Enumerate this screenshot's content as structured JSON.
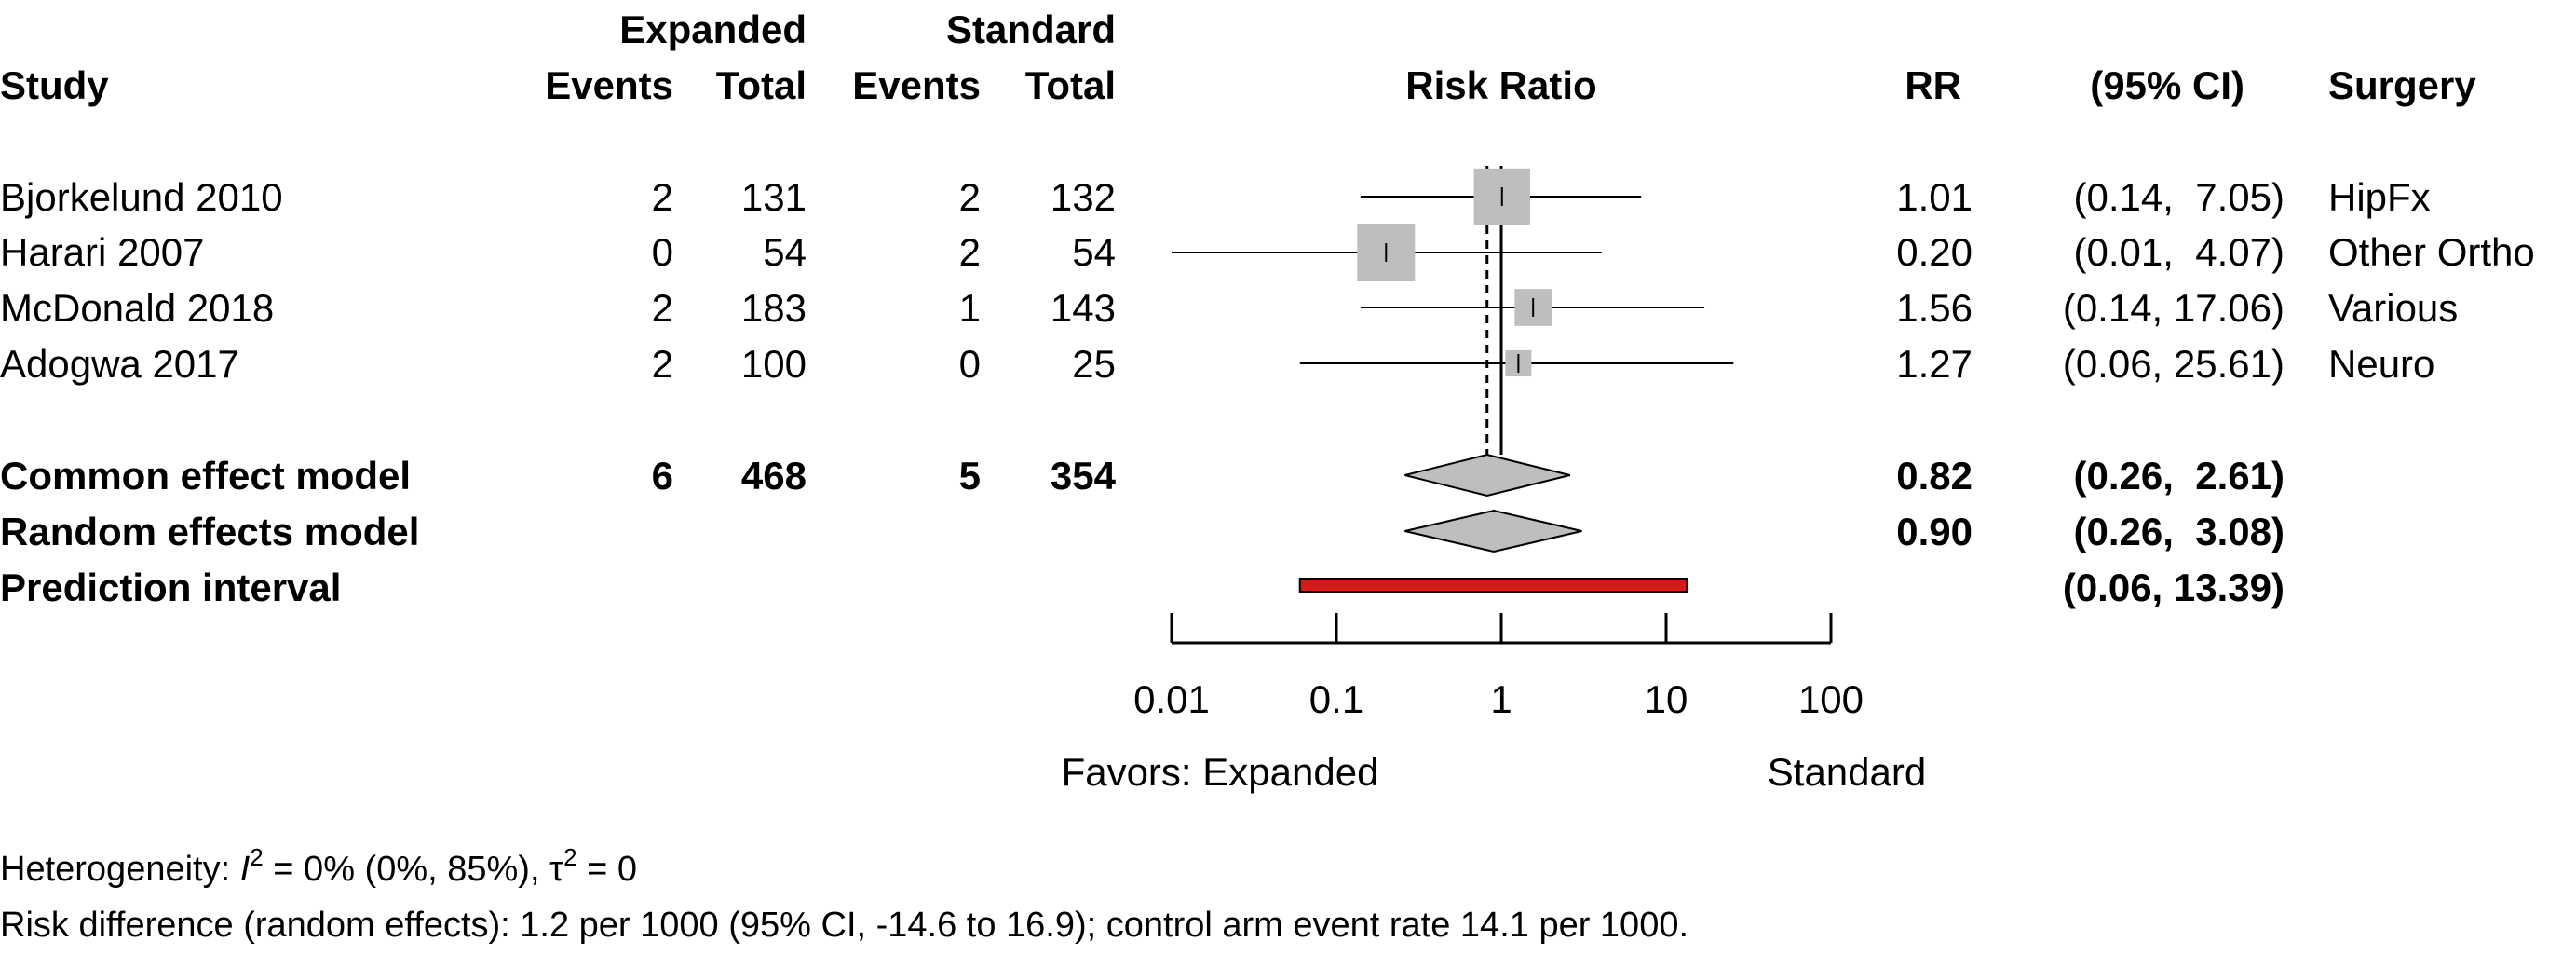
{
  "header": {
    "expanded": "Expanded",
    "standard": "Standard",
    "study": "Study",
    "events1": "Events",
    "total1": "Total",
    "events2": "Events",
    "total2": "Total",
    "risk_ratio": "Risk Ratio",
    "rr": "RR",
    "ci": "(95% CI)",
    "surgery": "Surgery"
  },
  "studies": [
    {
      "name": "Bjorkelund 2010",
      "e_events": "2",
      "e_total": "131",
      "s_events": "2",
      "s_total": "132",
      "rr": "1.01",
      "ci": "(0.14,  7.05)",
      "surgery": "HipFx"
    },
    {
      "name": "Harari 2007",
      "e_events": "0",
      "e_total": "54",
      "s_events": "2",
      "s_total": "54",
      "rr": "0.20",
      "ci": "(0.01,  4.07)",
      "surgery": "Other Ortho"
    },
    {
      "name": "McDonald 2018",
      "e_events": "2",
      "e_total": "183",
      "s_events": "1",
      "s_total": "143",
      "rr": "1.56",
      "ci": "(0.14, 17.06)",
      "surgery": "Various"
    },
    {
      "name": "Adogwa 2017",
      "e_events": "2",
      "e_total": "100",
      "s_events": "0",
      "s_total": "25",
      "rr": "1.27",
      "ci": "(0.06, 25.61)",
      "surgery": "Neuro"
    }
  ],
  "summaries": [
    {
      "name": "Common effect model",
      "e_events": "6",
      "e_total": "468",
      "s_events": "5",
      "s_total": "354",
      "rr": "0.82",
      "ci": "(0.26,  2.61)"
    },
    {
      "name": "Random effects model",
      "e_events": "",
      "e_total": "",
      "s_events": "",
      "s_total": "",
      "rr": "0.90",
      "ci": "(0.26,  3.08)"
    },
    {
      "name": "Prediction interval",
      "e_events": "",
      "e_total": "",
      "s_events": "",
      "s_total": "",
      "rr": "",
      "ci": "(0.06, 13.39)"
    }
  ],
  "axis": {
    "ticks": [
      "0.01",
      "0.1",
      "1",
      "10",
      "100"
    ],
    "favors_left": "Favors: Expanded",
    "favors_right": "Standard"
  },
  "footer": {
    "het_prefix": "Heterogeneity: ",
    "het_i": "I",
    "het_sup": "2",
    "het_mid": " = 0% (0%, 85%), ",
    "het_tau": "τ",
    "het_tau_sup": "2",
    "het_end": " = 0",
    "risk_diff": "Risk difference (random effects): 1.2 per 1000 (95% CI, -14.6 to 16.9); control arm event rate 14.1 per 1000."
  },
  "colors": {
    "box": "#bebebe",
    "diamond": "#bebebe",
    "prediction": "#d7191c",
    "line": "#000000"
  },
  "chart_data": {
    "type": "forest",
    "scale": "log",
    "xlim": [
      0.01,
      100
    ],
    "ticks": [
      0.01,
      0.1,
      1,
      10,
      100
    ],
    "reference_line": 1,
    "common_effect_line": 0.82,
    "studies": [
      {
        "rr": 1.01,
        "lo": 0.14,
        "hi": 7.05,
        "weight": 0.37
      },
      {
        "rr": 0.2,
        "lo": 0.01,
        "hi": 4.07,
        "weight": 0.39
      },
      {
        "rr": 1.56,
        "lo": 0.14,
        "hi": 17.06,
        "weight": 0.16
      },
      {
        "rr": 1.27,
        "lo": 0.06,
        "hi": 25.61,
        "weight": 0.08
      }
    ],
    "common_effect": {
      "rr": 0.82,
      "lo": 0.26,
      "hi": 2.61
    },
    "random_effects": {
      "rr": 0.9,
      "lo": 0.26,
      "hi": 3.08
    },
    "prediction_interval": {
      "lo": 0.06,
      "hi": 13.39
    }
  }
}
